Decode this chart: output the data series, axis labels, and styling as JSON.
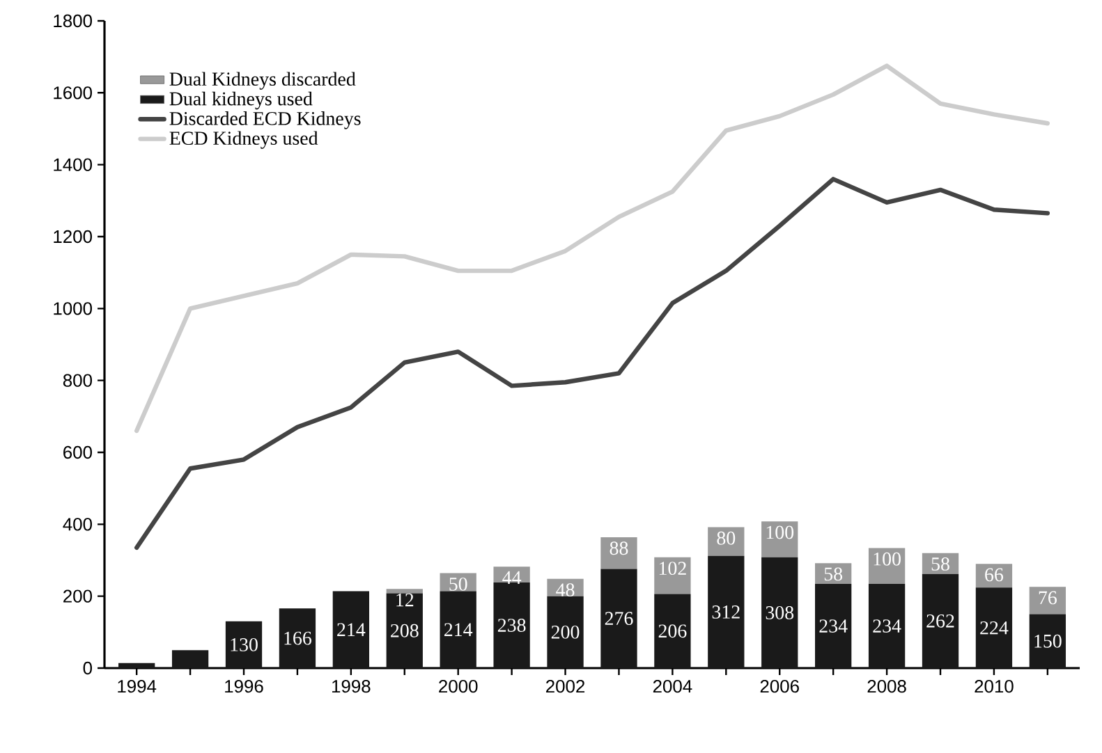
{
  "chart_data": {
    "type": "bar",
    "stacked": true,
    "legend": "top left",
    "categories": [
      "1994",
      null,
      "1996",
      null,
      "1998",
      null,
      "2000",
      null,
      "2002",
      null,
      "2004",
      null,
      "2006",
      null,
      "2008",
      null,
      "2010",
      null
    ],
    "ylim": [
      0,
      1800
    ],
    "yticks": [
      0,
      200,
      400,
      600,
      800,
      1000,
      1200,
      1400,
      1600,
      1800
    ],
    "series": [
      {
        "name": "Dual kidneys used",
        "type": "bar",
        "color": "#1a1a1a",
        "values": [
          14,
          50,
          130,
          166,
          214,
          208,
          214,
          238,
          200,
          276,
          206,
          312,
          308,
          234,
          234,
          262,
          224,
          150
        ],
        "value_labels": [
          null,
          null,
          "130",
          "166",
          "214",
          "208",
          "214",
          "238",
          "200",
          "276",
          "206",
          "312",
          "308",
          "234",
          "234",
          "262",
          "224",
          "150"
        ]
      },
      {
        "name": "Dual Kidneys discarded",
        "type": "bar",
        "color": "#999999",
        "values": [
          null,
          null,
          null,
          null,
          null,
          12,
          50,
          44,
          48,
          88,
          102,
          80,
          100,
          58,
          100,
          58,
          66,
          76
        ],
        "value_labels": [
          null,
          null,
          null,
          null,
          null,
          "12",
          "50",
          "44",
          "48",
          "88",
          "102",
          "80",
          "100",
          "58",
          "100",
          "58",
          "66",
          "76"
        ]
      },
      {
        "name": "Discarded ECD Kidneys",
        "type": "line",
        "color": "#444444",
        "values": [
          335,
          555,
          580,
          670,
          725,
          850,
          880,
          785,
          795,
          820,
          1015,
          1105,
          1230,
          1360,
          1295,
          1330,
          1275,
          1265
        ]
      },
      {
        "name": "ECD Kidneys used",
        "type": "line",
        "color": "#cccccc",
        "values": [
          660,
          1000,
          1035,
          1070,
          1150,
          1145,
          1105,
          1105,
          1160,
          1255,
          1325,
          1495,
          1535,
          1595,
          1675,
          1570,
          1540,
          1515
        ]
      }
    ]
  }
}
